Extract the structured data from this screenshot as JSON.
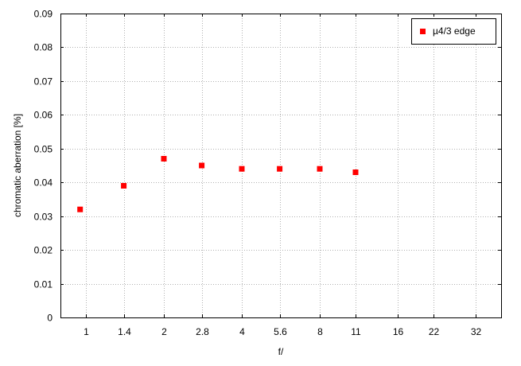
{
  "chart_data": {
    "type": "scatter",
    "title": "",
    "xlabel": "f/",
    "ylabel": "chromatic aberration [%]",
    "x_scale": "log2",
    "x_ticks": [
      {
        "value": 1,
        "label": "1"
      },
      {
        "value": 1.4,
        "label": "1.4"
      },
      {
        "value": 2,
        "label": "2"
      },
      {
        "value": 2.8,
        "label": "2.8"
      },
      {
        "value": 4,
        "label": "4"
      },
      {
        "value": 5.6,
        "label": "5.6"
      },
      {
        "value": 8,
        "label": "8"
      },
      {
        "value": 11,
        "label": "11"
      },
      {
        "value": 16,
        "label": "16"
      },
      {
        "value": 22,
        "label": "22"
      },
      {
        "value": 32,
        "label": "32"
      }
    ],
    "y_ticks": [
      "0",
      "0.01",
      "0.02",
      "0.03",
      "0.04",
      "0.05",
      "0.06",
      "0.07",
      "0.08",
      "0.09"
    ],
    "ylim": [
      0,
      0.09
    ],
    "grid": true,
    "legend_position": "top-right",
    "series": [
      {
        "name": "µ4/3 edge",
        "color": "#ff0000",
        "marker": "square",
        "points": [
          {
            "x": 0.95,
            "y": 0.032
          },
          {
            "x": 1.4,
            "y": 0.039
          },
          {
            "x": 2,
            "y": 0.047
          },
          {
            "x": 2.8,
            "y": 0.045
          },
          {
            "x": 4,
            "y": 0.044
          },
          {
            "x": 5.6,
            "y": 0.044
          },
          {
            "x": 8,
            "y": 0.044
          },
          {
            "x": 11,
            "y": 0.043
          }
        ]
      }
    ]
  }
}
